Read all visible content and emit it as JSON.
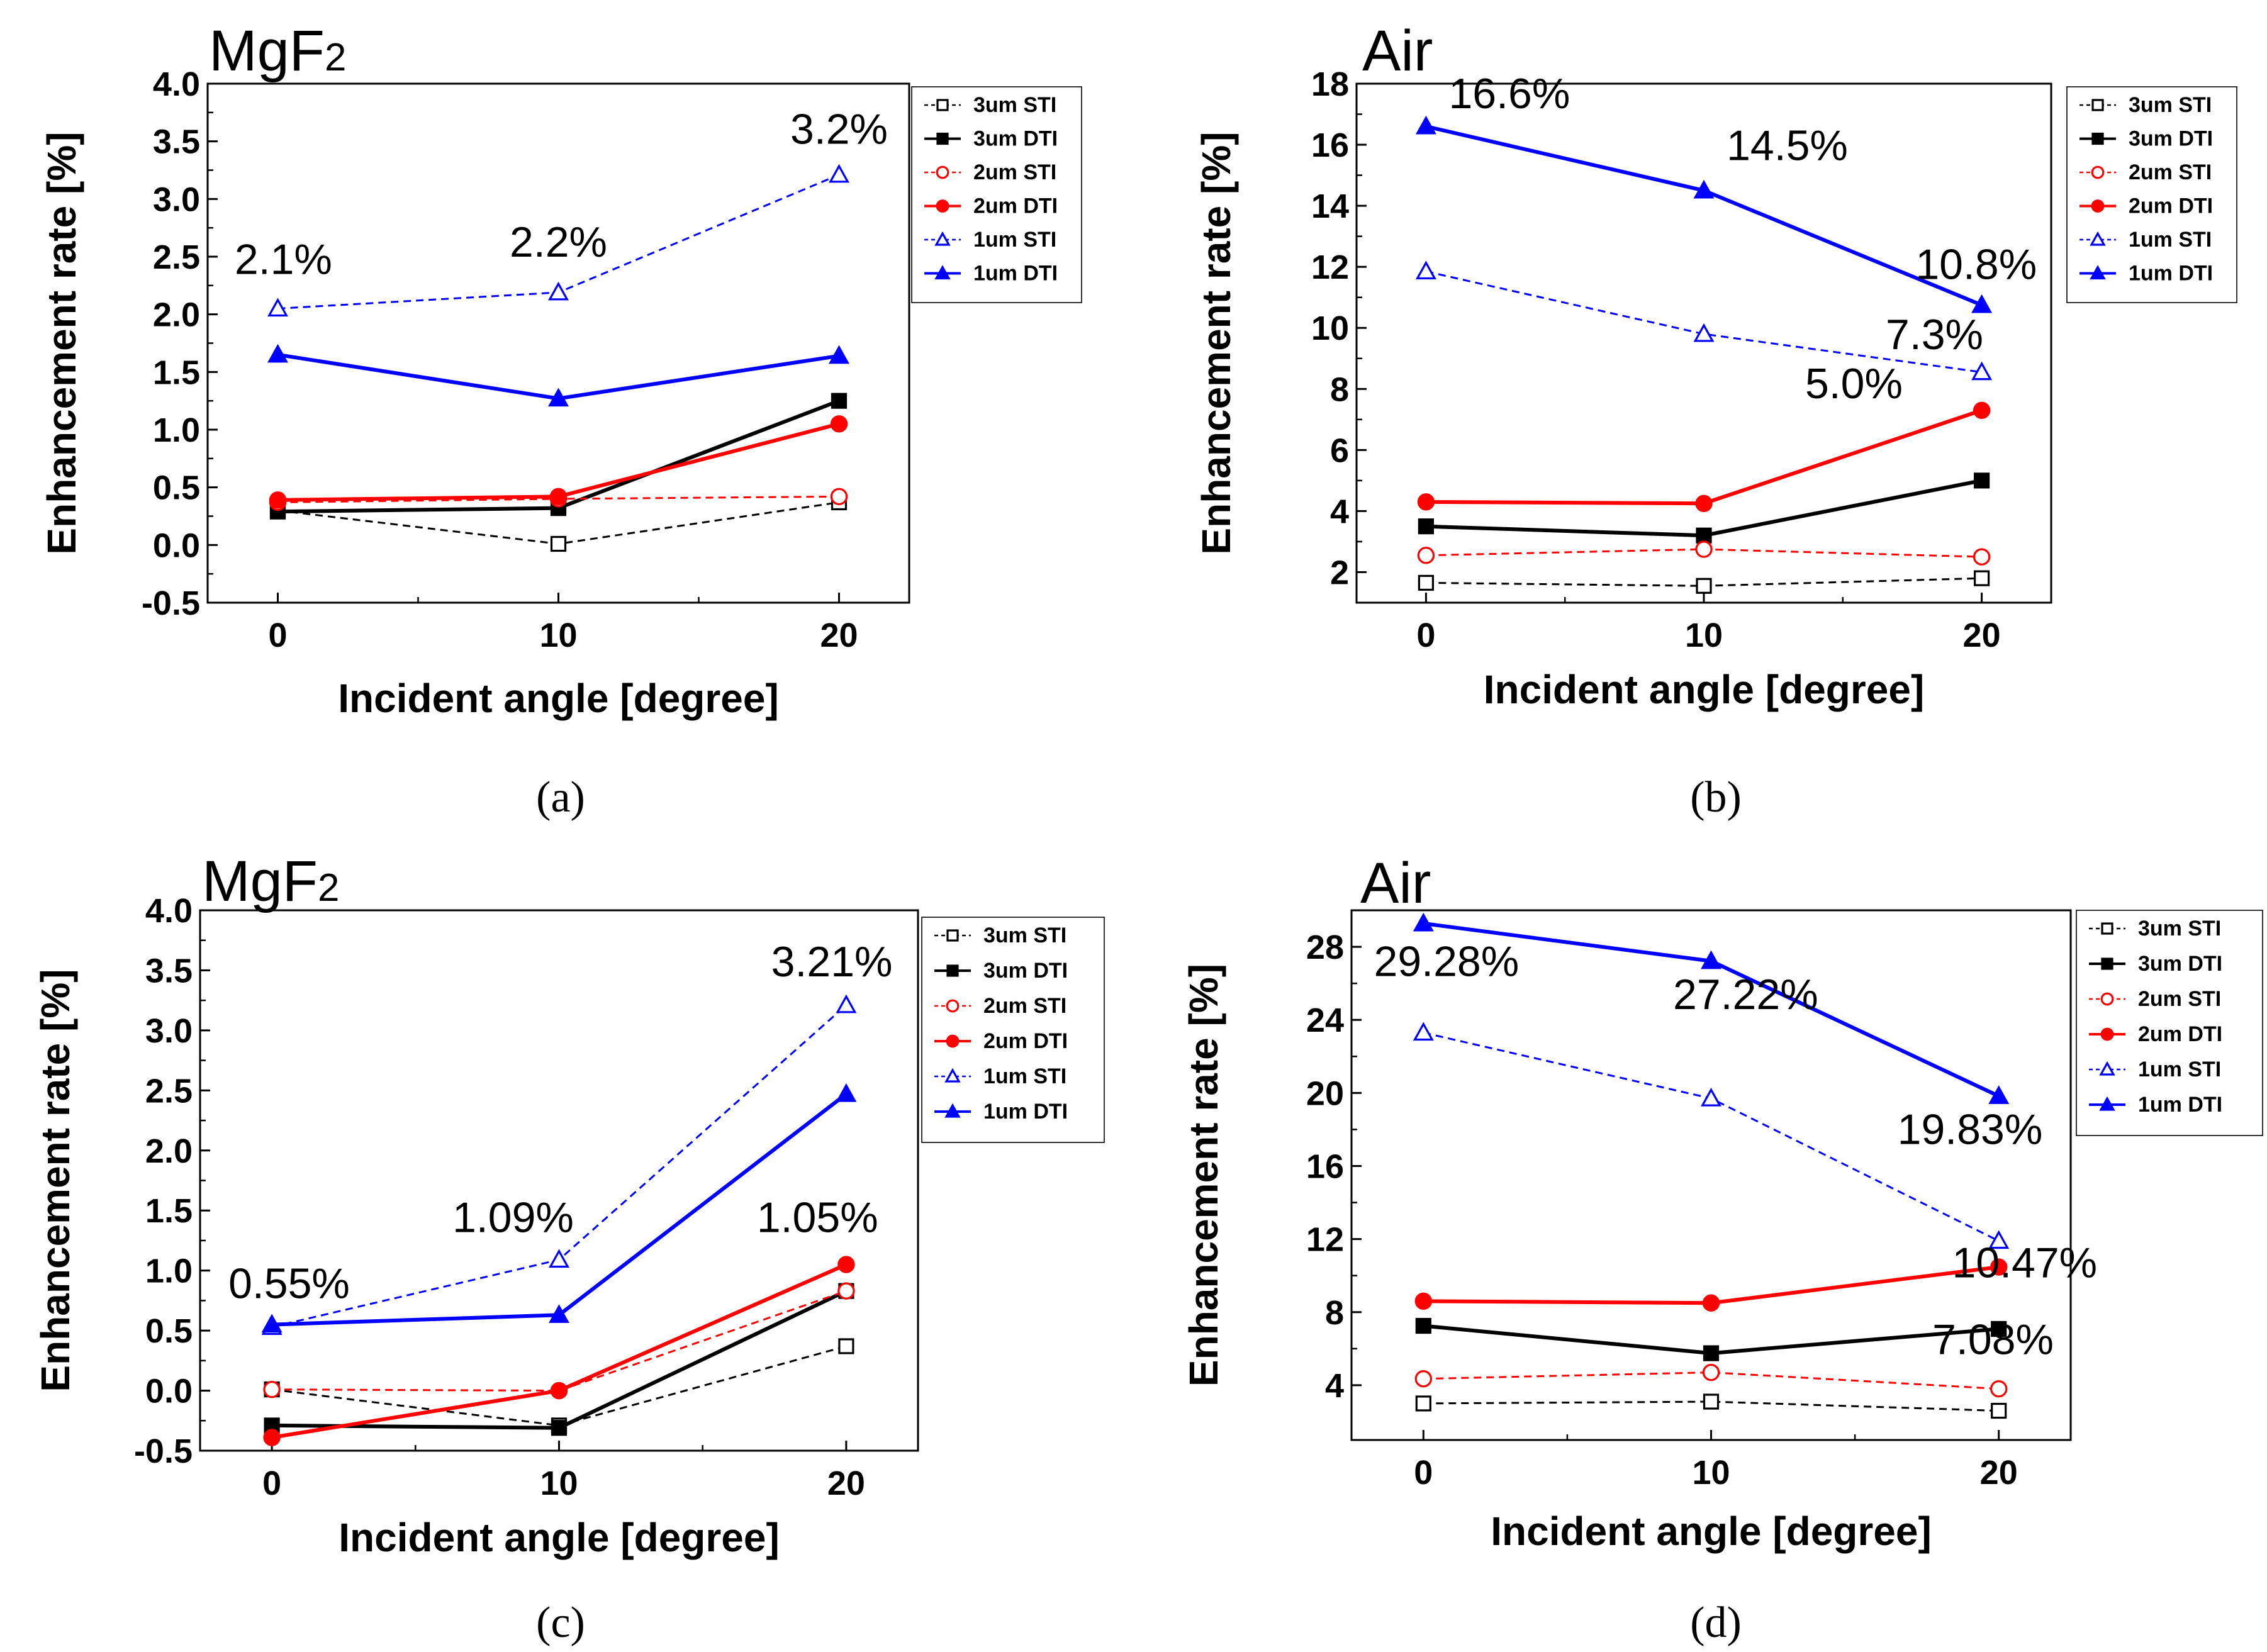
{
  "chart_data": [
    {
      "type": "line",
      "panel": "(a)",
      "title": "MgF2",
      "title_main": "MgF",
      "title_sub": "2",
      "caption": "(a)",
      "xlabel": "Incident angle [degree]",
      "ylabel": "Enhancement rate [%]",
      "x": [
        0,
        10,
        20
      ],
      "xticks": [
        "0",
        "10",
        "20"
      ],
      "xlim": [
        -2.5,
        22.5
      ],
      "ylim": [
        -0.5,
        4.0
      ],
      "yticks": [
        "-0.5",
        "0.0",
        "0.5",
        "1.0",
        "1.5",
        "2.0",
        "2.5",
        "3.0",
        "3.5",
        "4.0"
      ],
      "ytick_values": [
        -0.5,
        0.0,
        0.5,
        1.0,
        1.5,
        2.0,
        2.5,
        3.0,
        3.5,
        4.0
      ],
      "grid": false,
      "legend": "right",
      "series": [
        {
          "name": "3um STI",
          "values": [
            0.3,
            0.01,
            0.37
          ],
          "color": "#000000",
          "dashed": true,
          "marker": "square",
          "filled": false
        },
        {
          "name": "3um DTI",
          "values": [
            0.29,
            0.32,
            1.25
          ],
          "color": "#000000",
          "dashed": false,
          "marker": "square",
          "filled": true
        },
        {
          "name": "2um STI",
          "values": [
            0.37,
            0.4,
            0.42
          ],
          "color": "#ff0000",
          "dashed": true,
          "marker": "circle",
          "filled": false
        },
        {
          "name": "2um DTI",
          "values": [
            0.39,
            0.42,
            1.05
          ],
          "color": "#ff0000",
          "dashed": false,
          "marker": "circle",
          "filled": true
        },
        {
          "name": "1um STI",
          "values": [
            2.05,
            2.19,
            3.21
          ],
          "color": "#0000ff",
          "dashed": true,
          "marker": "triangle",
          "filled": false
        },
        {
          "name": "1um DTI",
          "values": [
            1.65,
            1.27,
            1.64
          ],
          "color": "#0000ff",
          "dashed": false,
          "marker": "triangle",
          "filled": true
        }
      ],
      "annotations": [
        {
          "text": "2.1%",
          "x": 0.2,
          "y": 2.35
        },
        {
          "text": "2.2%",
          "x": 10.0,
          "y": 2.5
        },
        {
          "text": "3.2%",
          "x": 20.0,
          "y": 3.48
        }
      ]
    },
    {
      "type": "line",
      "panel": "(b)",
      "title": "Air",
      "title_main": "Air",
      "title_sub": "",
      "caption": "(b)",
      "xlabel": "Incident angle [degree]",
      "ylabel": "Enhancement rate [%]",
      "x": [
        0,
        10,
        20
      ],
      "xticks": [
        "0",
        "10",
        "20"
      ],
      "xlim": [
        -2.5,
        22.5
      ],
      "ylim": [
        1,
        18
      ],
      "yticks": [
        "2",
        "4",
        "6",
        "8",
        "10",
        "12",
        "14",
        "16",
        "18"
      ],
      "ytick_values": [
        2,
        4,
        6,
        8,
        10,
        12,
        14,
        16,
        18
      ],
      "grid": false,
      "legend": "right",
      "series": [
        {
          "name": "3um STI",
          "values": [
            1.65,
            1.55,
            1.8
          ],
          "color": "#000000",
          "dashed": true,
          "marker": "square",
          "filled": false
        },
        {
          "name": "3um DTI",
          "values": [
            3.5,
            3.2,
            5.0
          ],
          "color": "#000000",
          "dashed": false,
          "marker": "square",
          "filled": true
        },
        {
          "name": "2um STI",
          "values": [
            2.55,
            2.75,
            2.5
          ],
          "color": "#ff0000",
          "dashed": true,
          "marker": "circle",
          "filled": false
        },
        {
          "name": "2um DTI",
          "values": [
            4.3,
            4.25,
            7.3
          ],
          "color": "#ff0000",
          "dashed": false,
          "marker": "circle",
          "filled": true
        },
        {
          "name": "1um STI",
          "values": [
            11.85,
            9.8,
            8.55
          ],
          "color": "#0000ff",
          "dashed": true,
          "marker": "triangle",
          "filled": false
        },
        {
          "name": "1um DTI",
          "values": [
            16.6,
            14.5,
            10.75
          ],
          "color": "#0000ff",
          "dashed": false,
          "marker": "triangle",
          "filled": true
        }
      ],
      "annotations": [
        {
          "text": "16.6%",
          "x": 3.0,
          "y": 17.2
        },
        {
          "text": "14.5%",
          "x": 13.0,
          "y": 15.5
        },
        {
          "text": "10.8%",
          "x": 19.8,
          "y": 11.6
        },
        {
          "text": "7.3%",
          "x": 18.3,
          "y": 9.3
        },
        {
          "text": "5.0%",
          "x": 15.4,
          "y": 7.7
        }
      ]
    },
    {
      "type": "line",
      "panel": "(c)",
      "title": "MgF2",
      "title_main": "MgF",
      "title_sub": "2",
      "caption": "(c)",
      "xlabel": "Incident angle [degree]",
      "ylabel": "Enhancement rate [%]",
      "x": [
        0,
        10,
        20
      ],
      "xticks": [
        "0",
        "10",
        "20"
      ],
      "xlim": [
        -2.5,
        22.5
      ],
      "ylim": [
        -0.5,
        4.0
      ],
      "yticks": [
        "-0.5",
        "0.0",
        "0.5",
        "1.0",
        "1.5",
        "2.0",
        "2.5",
        "3.0",
        "3.5",
        "4.0"
      ],
      "ytick_values": [
        -0.5,
        0.0,
        0.5,
        1.0,
        1.5,
        2.0,
        2.5,
        3.0,
        3.5,
        4.0
      ],
      "grid": false,
      "legend": "right",
      "series": [
        {
          "name": "3um STI",
          "values": [
            0.01,
            -0.29,
            0.37
          ],
          "color": "#000000",
          "dashed": true,
          "marker": "square",
          "filled": false
        },
        {
          "name": "3um DTI",
          "values": [
            -0.29,
            -0.31,
            0.83
          ],
          "color": "#000000",
          "dashed": false,
          "marker": "square",
          "filled": true
        },
        {
          "name": "2um STI",
          "values": [
            0.01,
            0.0,
            0.83
          ],
          "color": "#ff0000",
          "dashed": true,
          "marker": "circle",
          "filled": false
        },
        {
          "name": "2um DTI",
          "values": [
            -0.39,
            0.0,
            1.05
          ],
          "color": "#ff0000",
          "dashed": false,
          "marker": "circle",
          "filled": true
        },
        {
          "name": "1um STI",
          "values": [
            0.53,
            1.09,
            3.21
          ],
          "color": "#0000ff",
          "dashed": true,
          "marker": "triangle",
          "filled": false
        },
        {
          "name": "1um DTI",
          "values": [
            0.55,
            0.63,
            2.47
          ],
          "color": "#0000ff",
          "dashed": false,
          "marker": "triangle",
          "filled": true
        }
      ],
      "annotations": [
        {
          "text": "0.55%",
          "x": 0.6,
          "y": 0.77
        },
        {
          "text": "1.09%",
          "x": 8.4,
          "y": 1.32
        },
        {
          "text": "3.21%",
          "x": 19.5,
          "y": 3.45
        },
        {
          "text": "1.05%",
          "x": 19.0,
          "y": 1.32
        }
      ]
    },
    {
      "type": "line",
      "panel": "(d)",
      "title": "Air",
      "title_main": "Air",
      "title_sub": "",
      "caption": "(d)",
      "xlabel": "Incident angle [degree]",
      "ylabel": "Enhancement rate [%]",
      "x": [
        0,
        10,
        20
      ],
      "xticks": [
        "0",
        "10",
        "20"
      ],
      "xlim": [
        -2.5,
        22.5
      ],
      "ylim": [
        1,
        30
      ],
      "yticks": [
        "4",
        "8",
        "12",
        "16",
        "20",
        "24",
        "28"
      ],
      "ytick_values": [
        4,
        8,
        12,
        16,
        20,
        24,
        28
      ],
      "grid": false,
      "legend": "top-right",
      "series": [
        {
          "name": "3um STI",
          "values": [
            3.0,
            3.1,
            2.6
          ],
          "color": "#000000",
          "dashed": true,
          "marker": "square",
          "filled": false
        },
        {
          "name": "3um DTI",
          "values": [
            7.25,
            5.75,
            7.08
          ],
          "color": "#000000",
          "dashed": false,
          "marker": "square",
          "filled": true
        },
        {
          "name": "2um STI",
          "values": [
            4.35,
            4.7,
            3.8
          ],
          "color": "#ff0000",
          "dashed": true,
          "marker": "circle",
          "filled": false
        },
        {
          "name": "2um DTI",
          "values": [
            8.6,
            8.5,
            10.47
          ],
          "color": "#ff0000",
          "dashed": false,
          "marker": "circle",
          "filled": true
        },
        {
          "name": "1um STI",
          "values": [
            23.3,
            19.7,
            11.9
          ],
          "color": "#0000ff",
          "dashed": true,
          "marker": "triangle",
          "filled": false
        },
        {
          "name": "1um DTI",
          "values": [
            29.28,
            27.22,
            19.83
          ],
          "color": "#0000ff",
          "dashed": false,
          "marker": "triangle",
          "filled": true
        }
      ],
      "annotations": [
        {
          "text": "29.28%",
          "x": 0.8,
          "y": 26.4
        },
        {
          "text": "27.22%",
          "x": 11.2,
          "y": 24.6
        },
        {
          "text": "19.83%",
          "x": 19.0,
          "y": 17.2
        },
        {
          "text": "10.47%",
          "x": 20.9,
          "y": 9.9
        },
        {
          "text": "7.08%",
          "x": 19.8,
          "y": 5.7
        }
      ]
    }
  ]
}
